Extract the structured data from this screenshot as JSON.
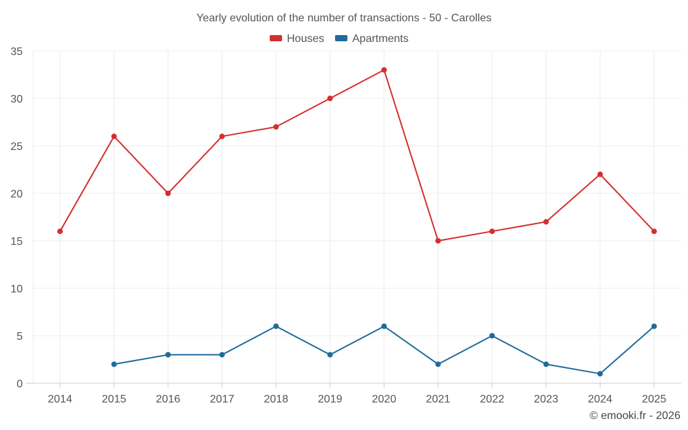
{
  "chart_data": {
    "type": "line",
    "title": "Yearly evolution of the number of transactions - 50 - Carolles",
    "categories": [
      "2014",
      "2015",
      "2016",
      "2017",
      "2018",
      "2019",
      "2020",
      "2021",
      "2022",
      "2023",
      "2024",
      "2025"
    ],
    "ylim": [
      0,
      35
    ],
    "yticks": [
      0,
      5,
      10,
      15,
      20,
      25,
      30,
      35
    ],
    "grid": true,
    "legend_position": "top-center",
    "series": [
      {
        "name": "Houses",
        "color": "#d32f2f",
        "values": [
          16,
          26,
          20,
          26,
          27,
          30,
          33,
          15,
          16,
          17,
          22,
          16
        ]
      },
      {
        "name": "Apartments",
        "color": "#1f6b9a",
        "values": [
          null,
          2,
          3,
          3,
          6,
          3,
          6,
          2,
          5,
          2,
          1,
          6
        ]
      }
    ]
  },
  "credit": "© emooki.fr - 2026"
}
